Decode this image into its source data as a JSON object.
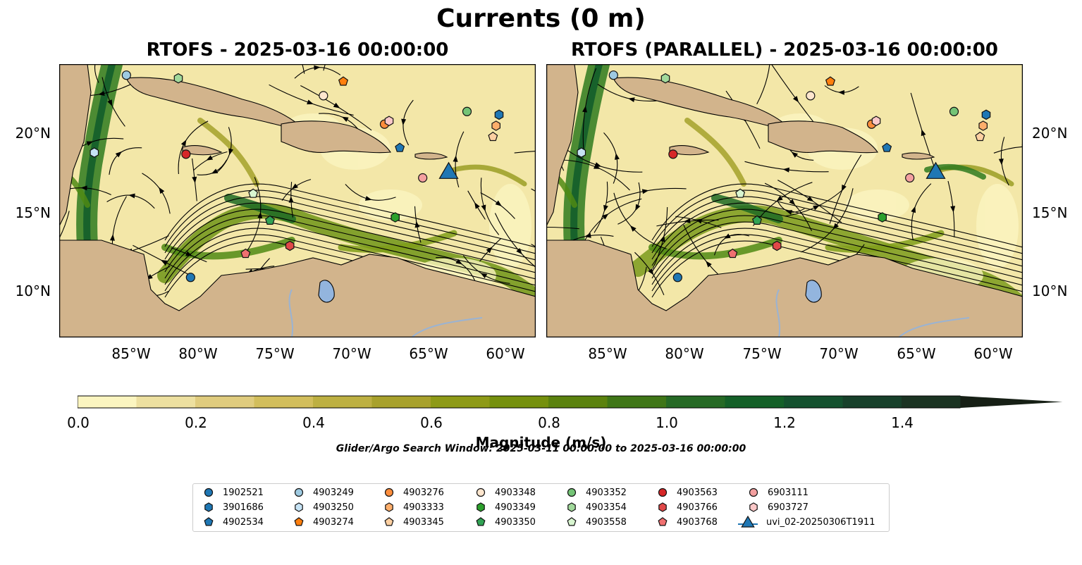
{
  "figure": {
    "suptitle": "Currents (0 m)",
    "panels": [
      {
        "title": "RTOFS - 2025-03-16 00:00:00"
      },
      {
        "title": "RTOFS (PARALLEL) - 2025-03-16 00:00:00"
      }
    ],
    "lon_ticks": [
      "85°W",
      "80°W",
      "75°W",
      "70°W",
      "65°W",
      "60°W"
    ],
    "lat_ticks": [
      "20°N",
      "15°N",
      "10°N"
    ],
    "map_extent": {
      "lon": [
        -89.6,
        -58.4
      ],
      "lat": [
        7.0,
        24.3
      ]
    },
    "colors": {
      "land": "#d2b48c",
      "lake": "#93b5de",
      "river": "#9ab3d3",
      "streamline": "#000000"
    }
  },
  "colorbar": {
    "label": "Magnitude (m/s)",
    "ticks": [
      "0.0",
      "0.2",
      "0.4",
      "0.6",
      "0.8",
      "1.0",
      "1.2",
      "1.4"
    ],
    "min": 0.0,
    "max": 1.5,
    "step": 0.1,
    "extend": "max",
    "colors": [
      "#fbf5c0",
      "#ede0a0",
      "#e0cc7e",
      "#d2be5c",
      "#bdb042",
      "#a8a12c",
      "#8e9a17",
      "#75900d",
      "#5b820e",
      "#3f7617",
      "#266a25",
      "#146028",
      "#14512e",
      "#17402a",
      "#1b3322",
      "#161f15"
    ]
  },
  "search_window": "Glider/Argo Search Window: 2025-03-11 00:00:00 to 2025-03-16 00:00:00",
  "legend": [
    {
      "label": "1902521",
      "color": "#1f77b4",
      "shape": "circle"
    },
    {
      "label": "3901686",
      "color": "#1f77b4",
      "shape": "hexagon"
    },
    {
      "label": "4902534",
      "color": "#1f77b4",
      "shape": "pentagon"
    },
    {
      "label": "4903249",
      "color": "#9ecae1",
      "shape": "circle"
    },
    {
      "label": "4903250",
      "color": "#c6e3f5",
      "shape": "hexagon"
    },
    {
      "label": "4903274",
      "color": "#ff7f0e",
      "shape": "pentagon"
    },
    {
      "label": "4903276",
      "color": "#fd8d3c",
      "shape": "circle"
    },
    {
      "label": "4903333",
      "color": "#fdae6b",
      "shape": "hexagon"
    },
    {
      "label": "4903345",
      "color": "#fdd0a2",
      "shape": "pentagon"
    },
    {
      "label": "4903348",
      "color": "#fee6ce",
      "shape": "circle"
    },
    {
      "label": "4903349",
      "color": "#2ca02c",
      "shape": "hexagon"
    },
    {
      "label": "4903350",
      "color": "#31a354",
      "shape": "pentagon"
    },
    {
      "label": "4903352",
      "color": "#74c476",
      "shape": "circle"
    },
    {
      "label": "4903354",
      "color": "#a1d99b",
      "shape": "hexagon"
    },
    {
      "label": "4903558",
      "color": "#d8f5d0",
      "shape": "pentagon"
    },
    {
      "label": "4903563",
      "color": "#d62728",
      "shape": "circle"
    },
    {
      "label": "4903766",
      "color": "#e04848",
      "shape": "hexagon"
    },
    {
      "label": "4903768",
      "color": "#f07070",
      "shape": "pentagon"
    },
    {
      "label": "6903111",
      "color": "#f4a0a0",
      "shape": "circle"
    },
    {
      "label": "6903727",
      "color": "#fcc8c8",
      "shape": "hexagon"
    },
    {
      "label": "uvi_02-20250306T1911",
      "color": "#1f77b4",
      "shape": "triangle"
    }
  ],
  "floats_left": [
    {
      "id": "1902521",
      "lon": -81.0,
      "lat": 10.8
    },
    {
      "id": "3901686",
      "lon": -60.8,
      "lat": 21.1
    },
    {
      "id": "4902534",
      "lon": -67.3,
      "lat": 19.0
    },
    {
      "id": "4903249",
      "lon": -85.2,
      "lat": 23.6
    },
    {
      "id": "4903250",
      "lon": -87.3,
      "lat": 18.7
    },
    {
      "id": "4903274",
      "lon": -71.0,
      "lat": 23.2
    },
    {
      "id": "4903276",
      "lon": -68.3,
      "lat": 20.5
    },
    {
      "id": "4903333",
      "lon": -61.0,
      "lat": 20.4
    },
    {
      "id": "4903345",
      "lon": -61.2,
      "lat": 19.7
    },
    {
      "id": "4903348",
      "lon": -72.3,
      "lat": 22.3
    },
    {
      "id": "4903349",
      "lon": -67.6,
      "lat": 14.6
    },
    {
      "id": "4903350",
      "lon": -75.8,
      "lat": 14.4
    },
    {
      "id": "4903352",
      "lon": -62.9,
      "lat": 21.3
    },
    {
      "id": "4903354",
      "lon": -81.8,
      "lat": 23.4
    },
    {
      "id": "4903558",
      "lon": -76.9,
      "lat": 16.1
    },
    {
      "id": "4903563",
      "lon": -81.3,
      "lat": 18.6
    },
    {
      "id": "4903766",
      "lon": -74.5,
      "lat": 12.8
    },
    {
      "id": "4903768",
      "lon": -77.4,
      "lat": 12.3
    },
    {
      "id": "6903111",
      "lon": -65.8,
      "lat": 17.1
    },
    {
      "id": "6903727",
      "lon": -68.0,
      "lat": 20.7
    }
  ],
  "floats_right": [
    {
      "id": "1902521",
      "lon": -81.0,
      "lat": 10.8
    },
    {
      "id": "3901686",
      "lon": -60.8,
      "lat": 21.1
    },
    {
      "id": "4902534",
      "lon": -67.3,
      "lat": 19.0
    },
    {
      "id": "4903249",
      "lon": -85.2,
      "lat": 23.6
    },
    {
      "id": "4903250",
      "lon": -87.3,
      "lat": 18.7
    },
    {
      "id": "4903274",
      "lon": -71.0,
      "lat": 23.2
    },
    {
      "id": "4903276",
      "lon": -68.3,
      "lat": 20.5
    },
    {
      "id": "4903333",
      "lon": -61.0,
      "lat": 20.4
    },
    {
      "id": "4903345",
      "lon": -61.2,
      "lat": 19.7
    },
    {
      "id": "4903348",
      "lon": -72.3,
      "lat": 22.3
    },
    {
      "id": "4903349",
      "lon": -67.6,
      "lat": 14.6
    },
    {
      "id": "4903350",
      "lon": -75.8,
      "lat": 14.4
    },
    {
      "id": "4903352",
      "lon": -62.9,
      "lat": 21.3
    },
    {
      "id": "4903354",
      "lon": -81.8,
      "lat": 23.4
    },
    {
      "id": "4903558",
      "lon": -76.9,
      "lat": 16.1
    },
    {
      "id": "4903563",
      "lon": -81.3,
      "lat": 18.6
    },
    {
      "id": "4903766",
      "lon": -74.5,
      "lat": 12.8
    },
    {
      "id": "4903768",
      "lon": -77.4,
      "lat": 12.3
    },
    {
      "id": "6903111",
      "lon": -65.8,
      "lat": 17.1
    },
    {
      "id": "6903727",
      "lon": -68.0,
      "lat": 20.7
    }
  ],
  "glider": {
    "id": "uvi_02-20250306T1911",
    "lon": -64.1,
    "lat": 17.4
  }
}
